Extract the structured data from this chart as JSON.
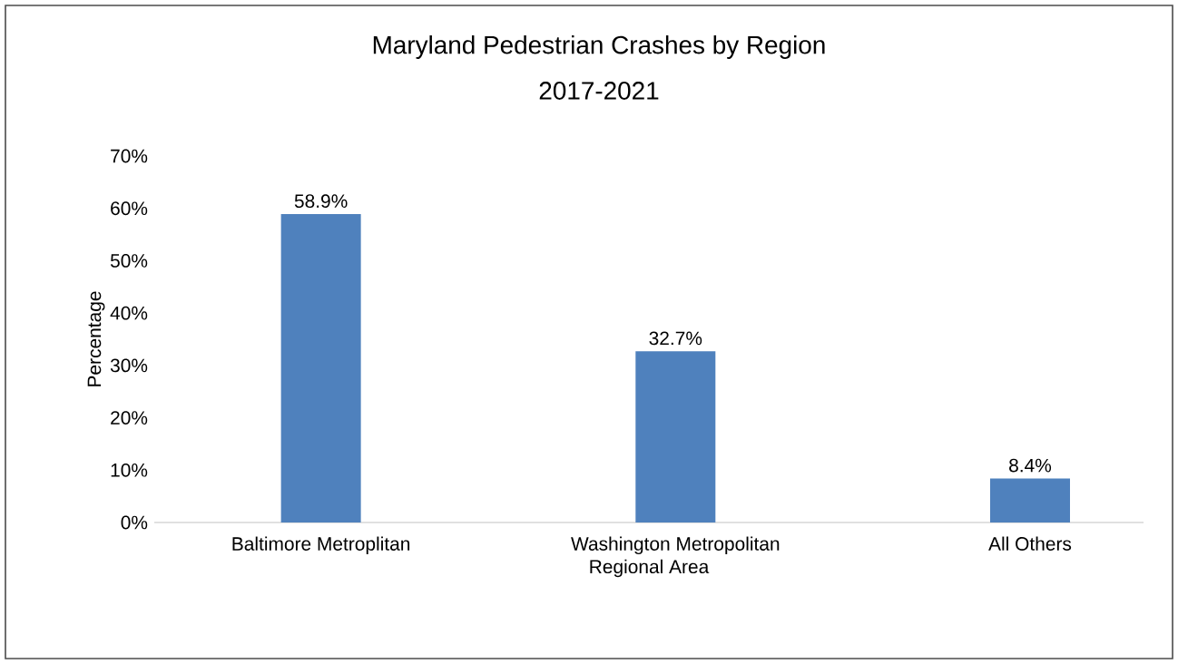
{
  "chart_data": {
    "type": "bar",
    "title": "Maryland Pedestrian Crashes by Region",
    "subtitle": "2017-2021",
    "xlabel": "Regional Area",
    "ylabel": "Percentage",
    "categories": [
      "Baltimore Metroplitan",
      "Washington Metropolitan",
      "All Others"
    ],
    "values": [
      58.9,
      32.7,
      8.4
    ],
    "color": "#4f81bd",
    "value_labels": [
      "58.9%",
      "32.7%",
      "8.4%"
    ],
    "ylim": [
      0,
      70
    ],
    "yticks": [
      {
        "value": 0,
        "label": "0%"
      },
      {
        "value": 10,
        "label": "10%"
      },
      {
        "value": 20,
        "label": "20%"
      },
      {
        "value": 30,
        "label": "30%"
      },
      {
        "value": 40,
        "label": "40%"
      },
      {
        "value": 50,
        "label": "50%"
      },
      {
        "value": 60,
        "label": "60%"
      },
      {
        "value": 70,
        "label": "70%"
      }
    ],
    "grid": false
  }
}
